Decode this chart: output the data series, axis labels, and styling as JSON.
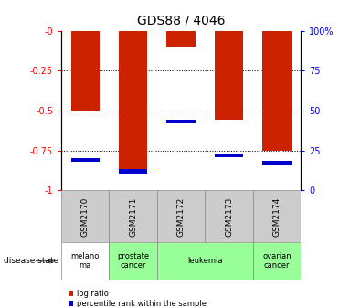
{
  "title": "GDS88 / 4046",
  "samples": [
    "GSM2170",
    "GSM2171",
    "GSM2172",
    "GSM2173",
    "GSM2174"
  ],
  "log_ratio": [
    -0.5,
    -0.88,
    -0.1,
    -0.56,
    -0.75
  ],
  "percentile_rank": [
    19,
    12,
    43,
    22,
    17
  ],
  "bar_color": "#cc2200",
  "percentile_color": "#0000cc",
  "ylim_left": [
    -1.0,
    0.0
  ],
  "ylim_right": [
    0,
    100
  ],
  "yticks_left": [
    0.0,
    -0.25,
    -0.5,
    -0.75,
    -1.0
  ],
  "ytick_labels_left": [
    "-0",
    "-0.25",
    "-0.5",
    "-0.75",
    "-1"
  ],
  "yticks_right": [
    0,
    25,
    50,
    75,
    100
  ],
  "ytick_labels_right": [
    "0",
    "25",
    "50",
    "75",
    "100%"
  ],
  "grid_yticks": [
    -0.25,
    -0.5,
    -0.75
  ],
  "bar_width": 0.6,
  "disease_groups": [
    {
      "label": "melano\nma",
      "start": 0,
      "end": 1,
      "color": "#ffffff"
    },
    {
      "label": "prostate\ncancer",
      "start": 1,
      "end": 2,
      "color": "#99ff99"
    },
    {
      "label": "leukemia",
      "start": 2,
      "end": 4,
      "color": "#99ff99"
    },
    {
      "label": "ovarian\ncancer",
      "start": 4,
      "end": 5,
      "color": "#99ff99"
    }
  ]
}
